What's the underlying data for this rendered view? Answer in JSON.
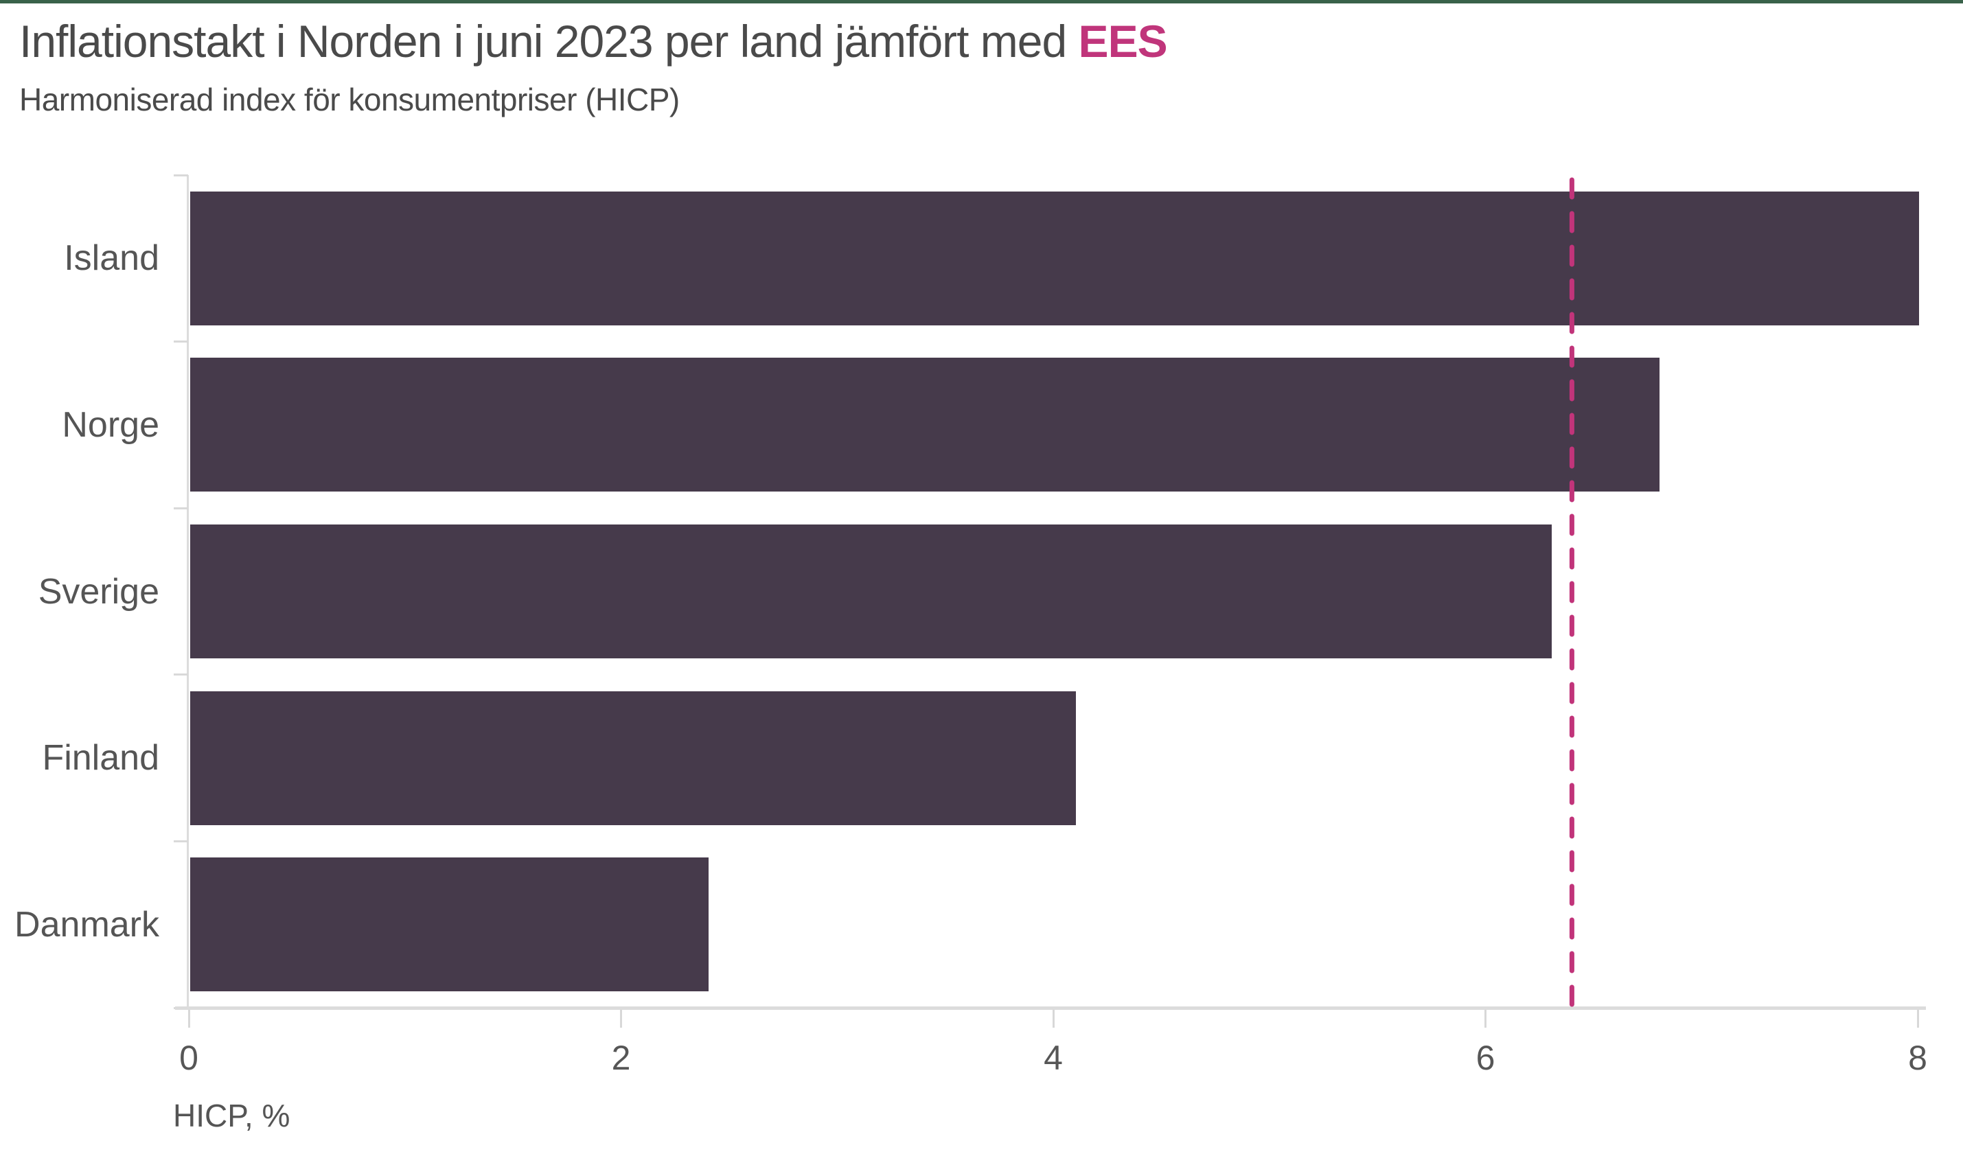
{
  "page": {
    "accent_top_color": "#39624a",
    "background_color": "#ffffff"
  },
  "header": {
    "title_prefix": "Inflationstakt i Norden i juni 2023 per land jämfört med ",
    "title_highlight": "EES",
    "title_highlight_color": "#c0357b",
    "subtitle": "Harmoniserad index för konsumentpriser (HICP)"
  },
  "chart_data": {
    "type": "bar",
    "orientation": "horizontal",
    "title": "Inflationstakt i Norden i juni 2023 per land jämfört med EES",
    "subtitle": "Harmoniserad index för konsumentpriser (HICP)",
    "categories": [
      "Island",
      "Norge",
      "Sverige",
      "Finland",
      "Danmark"
    ],
    "values": [
      8.0,
      6.8,
      6.3,
      4.1,
      2.4
    ],
    "value_unit": "%",
    "bar_color": "#463a4b",
    "xlabel": "HICP, %",
    "x_ticks": [
      "0",
      "2",
      "4",
      "6",
      "8"
    ],
    "x_tick_values": [
      0,
      2,
      4,
      6,
      8
    ],
    "xlim": [
      0,
      8
    ],
    "grid": false,
    "legend": "none",
    "axis_color": "#dcdcdc",
    "tick_label_color": "#565656",
    "reference_line": {
      "label": "EES",
      "value": 6.4,
      "color": "#c1347a",
      "style": "dashed"
    }
  }
}
